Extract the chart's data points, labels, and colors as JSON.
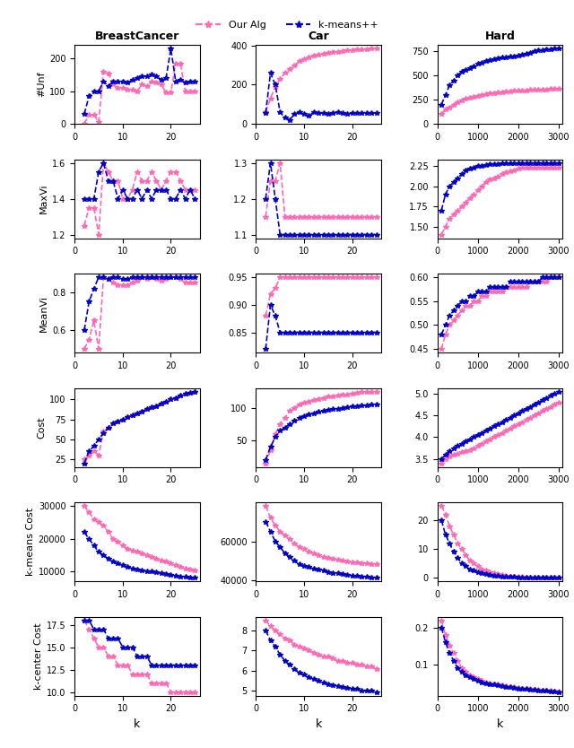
{
  "col_titles": [
    "BreastCancer",
    "Car",
    "Hard"
  ],
  "row_labels": [
    "#Unf",
    "MaxVi",
    "MeanVi",
    "Cost",
    "k-means Cost",
    "k-center Cost"
  ],
  "xlabel": "k",
  "legend": [
    "Our Alg",
    "k-means++"
  ],
  "alg_color": "#ff69b4",
  "km_color": "#0000cd",
  "BC_k": [
    2,
    3,
    4,
    5,
    6,
    7,
    8,
    9,
    10,
    11,
    12,
    13,
    14,
    15,
    16,
    17,
    18,
    19,
    20,
    21,
    22,
    23,
    24,
    25
  ],
  "BC_unf_alg": [
    0,
    28,
    28,
    5,
    160,
    155,
    120,
    110,
    110,
    105,
    105,
    100,
    120,
    115,
    130,
    125,
    120,
    95,
    95,
    185,
    185,
    100,
    100,
    100
  ],
  "BC_unf_km": [
    30,
    85,
    100,
    100,
    130,
    115,
    130,
    130,
    130,
    125,
    135,
    140,
    145,
    145,
    150,
    145,
    135,
    140,
    230,
    130,
    135,
    125,
    130,
    130
  ],
  "BC_maxvi_alg": [
    1.25,
    1.35,
    1.35,
    1.2,
    1.6,
    1.55,
    1.5,
    1.5,
    1.4,
    1.4,
    1.45,
    1.55,
    1.5,
    1.5,
    1.55,
    1.5,
    1.45,
    1.5,
    1.55,
    1.55,
    1.5,
    1.45,
    1.45,
    1.45
  ],
  "BC_maxvi_km": [
    1.4,
    1.4,
    1.4,
    1.55,
    1.6,
    1.5,
    1.5,
    1.4,
    1.45,
    1.4,
    1.4,
    1.45,
    1.4,
    1.45,
    1.4,
    1.45,
    1.45,
    1.45,
    1.4,
    1.4,
    1.45,
    1.4,
    1.45,
    1.4
  ],
  "BC_meanvi_alg": [
    0.5,
    0.55,
    0.65,
    0.5,
    0.88,
    0.87,
    0.85,
    0.84,
    0.84,
    0.84,
    0.85,
    0.86,
    0.88,
    0.87,
    0.88,
    0.87,
    0.86,
    0.87,
    0.88,
    0.88,
    0.87,
    0.85,
    0.85,
    0.85
  ],
  "BC_meanvi_km": [
    0.6,
    0.75,
    0.82,
    0.88,
    0.88,
    0.87,
    0.88,
    0.88,
    0.87,
    0.87,
    0.88,
    0.88,
    0.88,
    0.88,
    0.88,
    0.88,
    0.88,
    0.88,
    0.88,
    0.88,
    0.88,
    0.88,
    0.88,
    0.88
  ],
  "BC_cost_alg": [
    25,
    30,
    35,
    30,
    60,
    65,
    70,
    72,
    75,
    78,
    80,
    82,
    85,
    88,
    90,
    92,
    95,
    97,
    100,
    102,
    105,
    107,
    108,
    110
  ],
  "BC_cost_km": [
    20,
    35,
    42,
    50,
    58,
    65,
    70,
    72,
    75,
    78,
    80,
    82,
    85,
    88,
    90,
    92,
    95,
    97,
    100,
    102,
    105,
    107,
    108,
    110
  ],
  "BC_kmc_alg": [
    30000,
    28000,
    26000,
    25000,
    24000,
    22000,
    20000,
    19000,
    18000,
    17000,
    16500,
    16000,
    15500,
    15000,
    14500,
    14000,
    13500,
    13000,
    12500,
    12000,
    11500,
    11000,
    10800,
    10500
  ],
  "BC_kmc_km": [
    22000,
    20000,
    18000,
    16000,
    15000,
    14000,
    13000,
    12500,
    12000,
    11500,
    11000,
    10800,
    10500,
    10200,
    10000,
    9800,
    9500,
    9200,
    9000,
    8800,
    8600,
    8500,
    8300,
    8200
  ],
  "BC_kcc_alg": [
    18,
    17,
    16,
    15,
    15,
    14,
    14,
    13,
    13,
    13,
    12,
    12,
    12,
    12,
    11,
    11,
    11,
    11,
    10,
    10,
    10,
    10,
    10,
    10
  ],
  "BC_kcc_km": [
    18,
    18,
    17,
    17,
    17,
    16,
    16,
    16,
    15,
    15,
    15,
    14,
    14,
    14,
    13,
    13,
    13,
    13,
    13,
    13,
    13,
    13,
    13,
    13
  ],
  "Car_k": [
    2,
    3,
    4,
    5,
    6,
    7,
    8,
    9,
    10,
    11,
    12,
    13,
    14,
    15,
    16,
    17,
    18,
    19,
    20,
    21,
    22,
    23,
    24,
    25
  ],
  "Car_unf_alg": [
    60,
    130,
    190,
    230,
    260,
    280,
    300,
    320,
    330,
    340,
    350,
    355,
    360,
    365,
    368,
    370,
    373,
    375,
    378,
    380,
    382,
    383,
    385,
    386
  ],
  "Car_unf_km": [
    55,
    260,
    200,
    60,
    30,
    20,
    50,
    60,
    50,
    40,
    60,
    55,
    55,
    50,
    55,
    60,
    55,
    50,
    55,
    55,
    55,
    55,
    55,
    55
  ],
  "Car_maxvi_alg": [
    1.15,
    1.25,
    1.25,
    1.3,
    1.15,
    1.15,
    1.15,
    1.15,
    1.15,
    1.15,
    1.15,
    1.15,
    1.15,
    1.15,
    1.15,
    1.15,
    1.15,
    1.15,
    1.15,
    1.15,
    1.15,
    1.15,
    1.15,
    1.15
  ],
  "Car_maxvi_km": [
    1.2,
    1.3,
    1.2,
    1.1,
    1.1,
    1.1,
    1.1,
    1.1,
    1.1,
    1.1,
    1.1,
    1.1,
    1.1,
    1.1,
    1.1,
    1.1,
    1.1,
    1.1,
    1.1,
    1.1,
    1.1,
    1.1,
    1.1,
    1.1
  ],
  "Car_meanvi_alg": [
    0.88,
    0.92,
    0.93,
    0.95,
    0.95,
    0.95,
    0.95,
    0.95,
    0.95,
    0.95,
    0.95,
    0.95,
    0.95,
    0.95,
    0.95,
    0.95,
    0.95,
    0.95,
    0.95,
    0.95,
    0.95,
    0.95,
    0.95,
    0.95
  ],
  "Car_meanvi_km": [
    0.82,
    0.9,
    0.88,
    0.85,
    0.85,
    0.85,
    0.85,
    0.85,
    0.85,
    0.85,
    0.85,
    0.85,
    0.85,
    0.85,
    0.85,
    0.85,
    0.85,
    0.85,
    0.85,
    0.85,
    0.85,
    0.85,
    0.85,
    0.85
  ],
  "Car_cost_alg": [
    15,
    35,
    60,
    75,
    85,
    95,
    100,
    105,
    108,
    110,
    112,
    114,
    115,
    117,
    118,
    119,
    120,
    121,
    122,
    123,
    124,
    124,
    125,
    125
  ],
  "Car_cost_km": [
    20,
    40,
    55,
    65,
    70,
    75,
    80,
    85,
    88,
    90,
    92,
    94,
    95,
    97,
    98,
    99,
    100,
    101,
    102,
    103,
    104,
    104,
    105,
    105
  ],
  "Car_kmc_alg": [
    78000,
    72000,
    68000,
    65000,
    63000,
    61000,
    59000,
    57000,
    56000,
    55000,
    54000,
    53000,
    52000,
    51500,
    51000,
    50500,
    50000,
    49800,
    49500,
    49200,
    49000,
    48800,
    48600,
    48400
  ],
  "Car_kmc_km": [
    70000,
    65000,
    60000,
    57000,
    54000,
    52000,
    50000,
    48500,
    47500,
    46800,
    46000,
    45500,
    45000,
    44500,
    44000,
    43600,
    43200,
    42900,
    42600,
    42300,
    42100,
    41900,
    41700,
    41500
  ],
  "Car_kcc_alg": [
    8.5,
    8.2,
    8.0,
    7.8,
    7.6,
    7.5,
    7.3,
    7.2,
    7.1,
    7.0,
    6.9,
    6.8,
    6.7,
    6.7,
    6.6,
    6.5,
    6.5,
    6.4,
    6.4,
    6.3,
    6.3,
    6.2,
    6.2,
    6.1
  ],
  "Car_kcc_km": [
    8.0,
    7.5,
    7.2,
    6.8,
    6.5,
    6.3,
    6.1,
    5.9,
    5.8,
    5.7,
    5.6,
    5.5,
    5.4,
    5.35,
    5.3,
    5.25,
    5.2,
    5.15,
    5.1,
    5.1,
    5.0,
    5.0,
    5.0,
    4.95
  ],
  "Hard_k": [
    100,
    200,
    300,
    400,
    500,
    600,
    700,
    800,
    900,
    1000,
    1100,
    1200,
    1300,
    1400,
    1500,
    1600,
    1700,
    1800,
    1900,
    2000,
    2100,
    2200,
    2300,
    2400,
    2500,
    2600,
    2700,
    2800,
    2900,
    3000
  ],
  "Hard_unf_alg": [
    100,
    150,
    170,
    200,
    220,
    240,
    260,
    270,
    280,
    290,
    300,
    310,
    315,
    320,
    325,
    330,
    335,
    338,
    340,
    342,
    345,
    347,
    350,
    352,
    354,
    356,
    358,
    360,
    362,
    365
  ],
  "Hard_unf_km": [
    200,
    300,
    400,
    450,
    500,
    540,
    560,
    580,
    600,
    620,
    635,
    650,
    660,
    670,
    680,
    685,
    690,
    695,
    700,
    710,
    720,
    730,
    740,
    750,
    760,
    765,
    770,
    775,
    780,
    785
  ],
  "Hard_maxvi_alg": [
    1.4,
    1.5,
    1.6,
    1.65,
    1.7,
    1.75,
    1.8,
    1.85,
    1.9,
    1.95,
    2.0,
    2.05,
    2.08,
    2.1,
    2.12,
    2.15,
    2.17,
    2.18,
    2.2,
    2.22,
    2.23,
    2.23,
    2.23,
    2.23,
    2.23,
    2.23,
    2.23,
    2.23,
    2.23,
    2.23
  ],
  "Hard_maxvi_km": [
    1.7,
    1.9,
    2.0,
    2.05,
    2.1,
    2.15,
    2.2,
    2.22,
    2.23,
    2.25,
    2.25,
    2.26,
    2.27,
    2.27,
    2.27,
    2.28,
    2.28,
    2.28,
    2.28,
    2.29,
    2.29,
    2.29,
    2.29,
    2.29,
    2.29,
    2.29,
    2.29,
    2.29,
    2.29,
    2.29
  ],
  "Hard_meanvi_alg": [
    0.45,
    0.48,
    0.5,
    0.51,
    0.52,
    0.53,
    0.54,
    0.54,
    0.55,
    0.55,
    0.56,
    0.56,
    0.57,
    0.57,
    0.57,
    0.57,
    0.58,
    0.58,
    0.58,
    0.58,
    0.58,
    0.58,
    0.59,
    0.59,
    0.59,
    0.59,
    0.59,
    0.6,
    0.6,
    0.6
  ],
  "Hard_meanvi_km": [
    0.48,
    0.5,
    0.52,
    0.53,
    0.54,
    0.55,
    0.55,
    0.56,
    0.56,
    0.57,
    0.57,
    0.57,
    0.58,
    0.58,
    0.58,
    0.58,
    0.58,
    0.59,
    0.59,
    0.59,
    0.59,
    0.59,
    0.59,
    0.59,
    0.59,
    0.6,
    0.6,
    0.6,
    0.6,
    0.6
  ],
  "Hard_cost_alg": [
    3.4,
    3.5,
    3.55,
    3.6,
    3.62,
    3.65,
    3.68,
    3.7,
    3.75,
    3.8,
    3.85,
    3.9,
    3.95,
    4.0,
    4.05,
    4.1,
    4.15,
    4.2,
    4.25,
    4.3,
    4.35,
    4.4,
    4.45,
    4.5,
    4.55,
    4.6,
    4.65,
    4.7,
    4.75,
    4.8
  ],
  "Hard_cost_km": [
    3.5,
    3.6,
    3.68,
    3.75,
    3.8,
    3.85,
    3.9,
    3.95,
    4.0,
    4.05,
    4.1,
    4.15,
    4.2,
    4.25,
    4.3,
    4.35,
    4.4,
    4.45,
    4.5,
    4.55,
    4.6,
    4.65,
    4.7,
    4.75,
    4.8,
    4.85,
    4.9,
    4.95,
    5.0,
    5.05
  ],
  "Hard_kmc_alg": [
    25,
    22,
    18,
    15,
    12,
    10,
    8,
    6,
    5,
    4,
    3,
    2.5,
    2,
    1.5,
    1.2,
    0.9,
    0.7,
    0.5,
    0.4,
    0.3,
    0.25,
    0.2,
    0.18,
    0.15,
    0.13,
    0.12,
    0.11,
    0.1,
    0.09,
    0.08
  ],
  "Hard_kmc_km": [
    20,
    15,
    12,
    9,
    7,
    5,
    4,
    3,
    2.5,
    2,
    1.5,
    1.2,
    1.0,
    0.8,
    0.6,
    0.5,
    0.4,
    0.3,
    0.25,
    0.2,
    0.15,
    0.12,
    0.1,
    0.08,
    0.07,
    0.06,
    0.05,
    0.05,
    0.04,
    0.04
  ],
  "Hard_kcc_alg": [
    0.22,
    0.18,
    0.15,
    0.13,
    0.11,
    0.09,
    0.08,
    0.07,
    0.065,
    0.06,
    0.055,
    0.05,
    0.048,
    0.046,
    0.044,
    0.042,
    0.04,
    0.038,
    0.037,
    0.035,
    0.034,
    0.033,
    0.032,
    0.031,
    0.03,
    0.029,
    0.028,
    0.027,
    0.026,
    0.025
  ],
  "Hard_kcc_km": [
    0.2,
    0.16,
    0.13,
    0.11,
    0.09,
    0.08,
    0.07,
    0.065,
    0.06,
    0.055,
    0.05,
    0.048,
    0.046,
    0.044,
    0.042,
    0.04,
    0.038,
    0.037,
    0.035,
    0.034,
    0.033,
    0.032,
    0.031,
    0.03,
    0.029,
    0.028,
    0.027,
    0.026,
    0.025,
    0.024
  ]
}
